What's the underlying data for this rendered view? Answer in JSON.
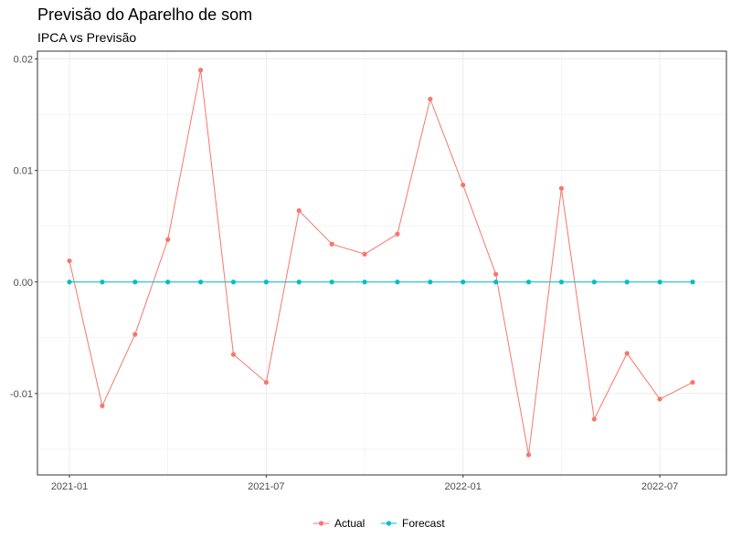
{
  "chart_data": {
    "type": "line",
    "title": "Previsão do Aparelho de som",
    "subtitle": "IPCA vs Previsão",
    "xlabel": "",
    "ylabel": "",
    "x": [
      "2021-01",
      "2021-02",
      "2021-03",
      "2021-04",
      "2021-05",
      "2021-06",
      "2021-07",
      "2021-08",
      "2021-09",
      "2021-10",
      "2021-11",
      "2021-12",
      "2022-01",
      "2022-02",
      "2022-03",
      "2022-04",
      "2022-05",
      "2022-06",
      "2022-07",
      "2022-08"
    ],
    "x_tick_labels": [
      "2021-01",
      "2021-07",
      "2022-01",
      "2022-07"
    ],
    "y_tick_labels": [
      "-0.01",
      "0.00",
      "0.01",
      "0.02"
    ],
    "ylim": [
      -0.0173,
      0.0207
    ],
    "grid": true,
    "legend_position": "bottom",
    "series": [
      {
        "name": "Actual",
        "color": "#F8766D",
        "values": [
          0.0019,
          -0.0111,
          -0.0047,
          0.0038,
          0.019,
          -0.0065,
          -0.009,
          0.0064,
          0.0034,
          0.0025,
          0.0043,
          0.0164,
          0.0087,
          0.0007,
          -0.0155,
          0.0084,
          -0.0123,
          -0.0064,
          -0.0105,
          -0.009
        ]
      },
      {
        "name": "Forecast",
        "color": "#00BFC4",
        "values": [
          0,
          0,
          0,
          0,
          0,
          0,
          0,
          0,
          0,
          0,
          0,
          0,
          0,
          0,
          0,
          0,
          0,
          0,
          0,
          0
        ]
      }
    ]
  }
}
